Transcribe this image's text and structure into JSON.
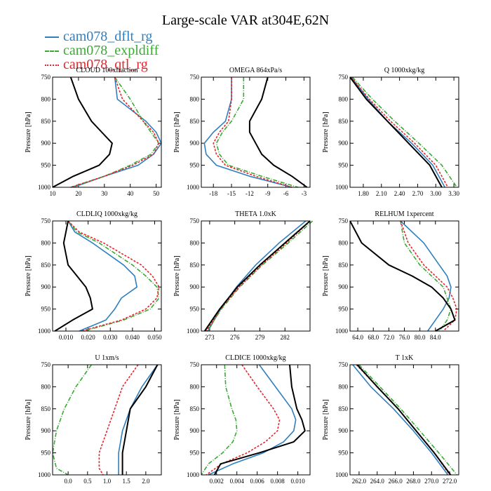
{
  "title": "Large-scale VAR at304E,62N",
  "legend": [
    {
      "name": "cam078_dflt_rg",
      "color": "#2f7fbf",
      "dash": ""
    },
    {
      "name": "cam078_expldiff",
      "color": "#3aaa35",
      "dash": "6 2 1 2"
    },
    {
      "name": "cam078_qtl_rg",
      "color": "#e3262c",
      "dash": "3 2"
    }
  ],
  "colors": {
    "obs": "#000000"
  },
  "chart_data": [
    {
      "type": "line",
      "title": "CLOUD 100xfraction",
      "ylabel": "Pressure [hPa]",
      "ylim": [
        750,
        1000
      ],
      "yticks": [
        750,
        800,
        850,
        900,
        950,
        1000
      ],
      "xlim": [
        10,
        52
      ],
      "xticks": [
        10,
        20,
        30,
        40,
        50
      ],
      "xticklabels": [
        "10",
        "20",
        "30",
        "40",
        "50"
      ],
      "p": [
        750,
        800,
        850,
        875,
        900,
        925,
        950,
        975,
        1000
      ],
      "series": [
        {
          "values": [
            34,
            35,
            46,
            50,
            52,
            49,
            43,
            30,
            18
          ]
        },
        {
          "values": [
            34,
            40,
            45,
            48,
            51,
            48,
            40,
            30,
            17
          ]
        },
        {
          "values": [
            34,
            37,
            45,
            49,
            51,
            49,
            41,
            30,
            17
          ]
        },
        {
          "values": [
            17,
            20,
            25,
            29,
            33,
            32,
            28,
            18,
            10
          ]
        }
      ]
    },
    {
      "type": "line",
      "title": "OMEGA 864xPa/s",
      "ylabel": "Pressure [hPa]",
      "ylim": [
        750,
        1000
      ],
      "yticks": [
        750,
        800,
        850,
        900,
        950,
        1000
      ],
      "xlim": [
        -20,
        -2
      ],
      "xticks": [
        -18,
        -15,
        -12,
        -9,
        -6,
        -3
      ],
      "xticklabels": [
        "-18",
        "-15",
        "-12",
        "-9",
        "-6",
        "-3"
      ],
      "p": [
        750,
        800,
        850,
        875,
        900,
        925,
        950,
        975,
        1000
      ],
      "series": [
        {
          "values": [
            -15,
            -15,
            -16,
            -18,
            -19.5,
            -19.2,
            -17.5,
            -12,
            -5
          ]
        },
        {
          "values": [
            -13,
            -13,
            -15,
            -16.5,
            -17.5,
            -17,
            -15.5,
            -10,
            -4
          ]
        },
        {
          "values": [
            -15,
            -15,
            -15.5,
            -17,
            -18,
            -17.5,
            -16,
            -11,
            -5
          ]
        },
        {
          "values": [
            -9,
            -10,
            -12,
            -12,
            -11,
            -10,
            -8,
            -5,
            -2.5
          ]
        }
      ]
    },
    {
      "type": "line",
      "title": "Q 1000xkg/kg",
      "ylabel": "Pressure [hPa]",
      "ylim": [
        750,
        1000
      ],
      "yticks": [
        750,
        800,
        850,
        900,
        950,
        1000
      ],
      "xlim": [
        1.58,
        3.38
      ],
      "xticks": [
        1.8,
        2.1,
        2.4,
        2.7,
        3.0,
        3.3
      ],
      "xticklabels": [
        "1.80",
        "2.10",
        "2.40",
        "2.70",
        "3.00",
        "3.30"
      ],
      "p": [
        750,
        800,
        850,
        900,
        950,
        1000
      ],
      "series": [
        {
          "values": [
            1.6,
            1.88,
            2.2,
            2.6,
            2.95,
            3.15
          ]
        },
        {
          "values": [
            1.62,
            1.95,
            2.32,
            2.72,
            3.1,
            3.35
          ]
        },
        {
          "values": [
            1.6,
            1.9,
            2.25,
            2.65,
            3.0,
            3.2
          ]
        },
        {
          "values": [
            1.58,
            1.85,
            2.2,
            2.55,
            2.9,
            3.1
          ]
        }
      ]
    },
    {
      "type": "line",
      "title": "CLDLIQ 1000xkg/kg",
      "ylabel": "Pressure [hPa]",
      "ylim": [
        750,
        1000
      ],
      "yticks": [
        750,
        800,
        850,
        900,
        950,
        1000
      ],
      "xlim": [
        0.004,
        0.053
      ],
      "xticks": [
        0.01,
        0.02,
        0.03,
        0.04,
        0.05
      ],
      "xticklabels": [
        "0.010",
        "0.020",
        "0.030",
        "0.040",
        "0.050"
      ],
      "p": [
        750,
        775,
        800,
        850,
        875,
        900,
        925,
        950,
        975,
        1000
      ],
      "series": [
        {
          "values": [
            0.011,
            0.014,
            0.022,
            0.036,
            0.041,
            0.042,
            0.035,
            0.032,
            0.028,
            0.016
          ]
        },
        {
          "values": [
            0.011,
            0.015,
            0.025,
            0.04,
            0.046,
            0.051,
            0.052,
            0.048,
            0.036,
            0.018
          ]
        },
        {
          "values": [
            0.011,
            0.016,
            0.027,
            0.044,
            0.049,
            0.052,
            0.051,
            0.046,
            0.035,
            0.017
          ]
        },
        {
          "values": [
            0.011,
            0.01,
            0.009,
            0.011,
            0.015,
            0.019,
            0.021,
            0.022,
            0.013,
            0.005
          ]
        }
      ]
    },
    {
      "type": "line",
      "title": "THETA 1.0xK",
      "ylabel": "Pressure [hPa]",
      "ylim": [
        750,
        1000
      ],
      "yticks": [
        750,
        800,
        850,
        900,
        950,
        1000
      ],
      "xlim": [
        272,
        285
      ],
      "xticks": [
        273,
        276,
        279,
        282
      ],
      "xticklabels": [
        "273",
        "276",
        "279",
        "282"
      ],
      "p": [
        750,
        800,
        850,
        900,
        950,
        1000
      ],
      "series": [
        {
          "values": [
            284.5,
            281.3,
            278.5,
            276.2,
            274.3,
            272.8
          ]
        },
        {
          "values": [
            285.3,
            282.4,
            279.3,
            276.6,
            274.4,
            272.7
          ]
        },
        {
          "values": [
            285.0,
            282.2,
            279.2,
            276.5,
            274.3,
            272.6
          ]
        },
        {
          "values": [
            285.0,
            282.0,
            279.0,
            276.3,
            274.2,
            272.4
          ]
        }
      ]
    },
    {
      "type": "line",
      "title": "RELHUM 1xpercent",
      "ylabel": "Pressure [hPa]",
      "ylim": [
        750,
        1000
      ],
      "yticks": [
        750,
        800,
        850,
        900,
        950,
        1000
      ],
      "xlim": [
        62,
        90
      ],
      "xticks": [
        64,
        68,
        72,
        76,
        80,
        84
      ],
      "xticklabels": [
        "64.0",
        "68.0",
        "72.0",
        "76.0",
        "80.0",
        "84.0"
      ],
      "p": [
        750,
        800,
        850,
        875,
        900,
        925,
        950,
        975,
        1000
      ],
      "series": [
        {
          "values": [
            75,
            81,
            85,
            87,
            88,
            87.5,
            86,
            84,
            82
          ]
        },
        {
          "values": [
            75,
            76,
            80,
            83,
            86,
            87,
            88,
            87,
            85
          ]
        },
        {
          "values": [
            75,
            77,
            81,
            84,
            87,
            88.5,
            89.5,
            89,
            86
          ]
        },
        {
          "values": [
            62,
            65,
            72,
            78,
            83,
            86,
            88,
            89,
            84
          ]
        }
      ]
    },
    {
      "type": "line",
      "title": "U 1xm/s",
      "ylabel": "Pressure [hPa]",
      "ylim": [
        750,
        1000
      ],
      "yticks": [
        750,
        800,
        850,
        900,
        950,
        1000
      ],
      "xlim": [
        -0.4,
        2.4
      ],
      "xticks": [
        0.0,
        0.5,
        1.0,
        1.5,
        2.0
      ],
      "xticklabels": [
        "0.0",
        "0.5",
        "1.0",
        "1.5",
        "2.0"
      ],
      "p": [
        750,
        800,
        850,
        900,
        950,
        985,
        1000
      ],
      "series": [
        {
          "values": [
            2.3,
            1.9,
            1.6,
            1.4,
            1.3,
            1.3,
            1.3
          ]
        },
        {
          "values": [
            0.6,
            0.2,
            -0.1,
            -0.3,
            -0.4,
            -0.3,
            0.0
          ]
        },
        {
          "values": [
            1.8,
            1.4,
            1.2,
            1.0,
            0.8,
            0.8,
            0.9
          ]
        },
        {
          "values": [
            2.3,
            2.0,
            1.6,
            1.5,
            1.4,
            1.4,
            1.4
          ]
        }
      ]
    },
    {
      "type": "line",
      "title": "CLDICE 1000xkg/kg",
      "ylabel": "Pressure [hPa]",
      "ylim": [
        750,
        1000
      ],
      "yticks": [
        750,
        800,
        850,
        900,
        950,
        1000
      ],
      "xlim": [
        0.0005,
        0.0112
      ],
      "xticks": [
        0.002,
        0.004,
        0.006,
        0.008,
        0.01
      ],
      "xticklabels": [
        "0.002",
        "0.004",
        "0.006",
        "0.008",
        "0.010"
      ],
      "p": [
        750,
        800,
        850,
        875,
        900,
        925,
        950,
        975,
        1000
      ],
      "series": [
        {
          "values": [
            0.0062,
            0.0078,
            0.0094,
            0.0098,
            0.0096,
            0.0086,
            0.0066,
            0.0036,
            0.0012
          ]
        },
        {
          "values": [
            0.0028,
            0.0029,
            0.0035,
            0.0039,
            0.004,
            0.0036,
            0.0026,
            0.0012,
            0.0005
          ]
        },
        {
          "values": [
            0.0045,
            0.006,
            0.0076,
            0.0082,
            0.008,
            0.0068,
            0.005,
            0.0025,
            0.001
          ]
        },
        {
          "values": [
            0.0092,
            0.0094,
            0.0099,
            0.0104,
            0.0107,
            0.0096,
            0.0062,
            0.0024,
            0.0018
          ]
        }
      ]
    },
    {
      "type": "line",
      "title": "T 1xK",
      "ylabel": "Pressure [hPa]",
      "ylim": [
        750,
        1000
      ],
      "yticks": [
        750,
        800,
        850,
        900,
        950,
        1000
      ],
      "xlim": [
        261,
        273
      ],
      "xticks": [
        262,
        264,
        266,
        268,
        270,
        272
      ],
      "xticklabels": [
        "262.0",
        "264.0",
        "266.0",
        "268.0",
        "270.0",
        "272.0"
      ],
      "p": [
        750,
        800,
        850,
        900,
        950,
        1000
      ],
      "series": [
        {
          "values": [
            261.3,
            263.3,
            265.8,
            268.0,
            270.0,
            271.8
          ]
        },
        {
          "values": [
            262.0,
            264.3,
            266.6,
            268.7,
            270.8,
            272.8
          ]
        },
        {
          "values": [
            261.7,
            264.0,
            266.3,
            268.3,
            270.3,
            272.0
          ]
        },
        {
          "values": [
            261.8,
            264.0,
            266.3,
            268.3,
            270.3,
            272.1
          ]
        }
      ]
    }
  ]
}
